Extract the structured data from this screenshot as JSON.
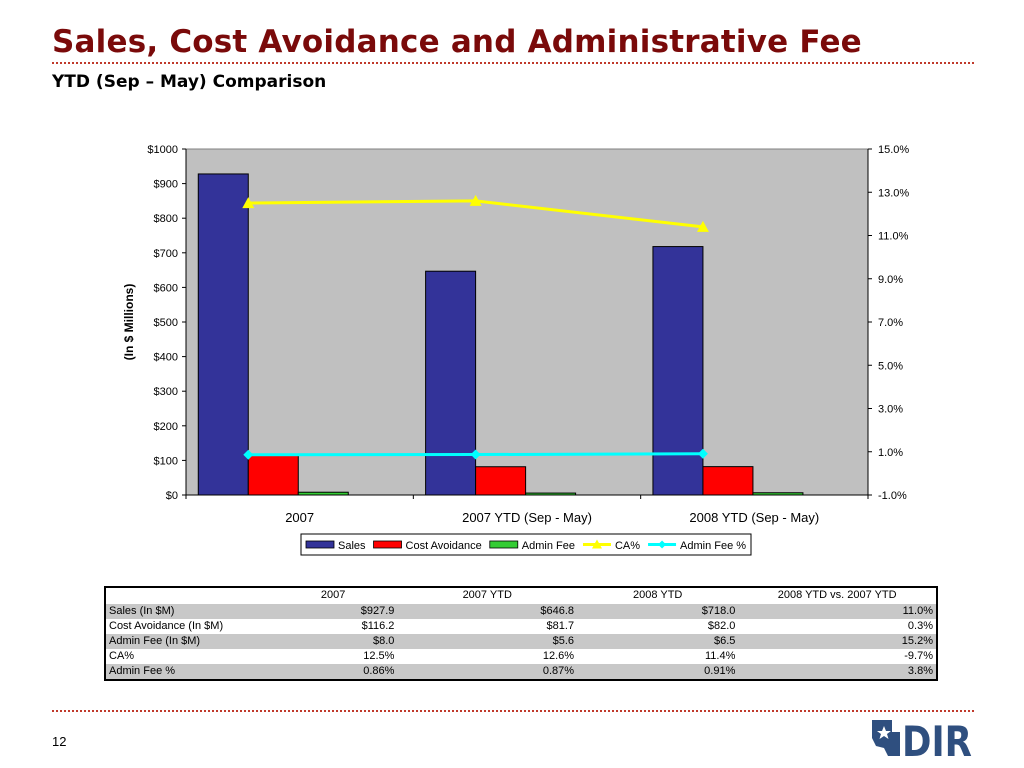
{
  "slide": {
    "title": "Sales, Cost Avoidance and Administrative Fee",
    "subtitle": "YTD (Sep – May) Comparison",
    "page_number": "12",
    "logo_text": "DIR"
  },
  "colors": {
    "title": "#7a0a0a",
    "rule": "#c0392b",
    "plot_bg": "#c0c0c0",
    "sales": "#333399",
    "cost_avoidance": "#ff0000",
    "admin_fee": "#33cc33",
    "ca_pct": "#ffff00",
    "admin_fee_pct": "#00ffff",
    "logo": "#2f4f7f"
  },
  "chart_data": {
    "type": "bar",
    "categories": [
      "2007",
      "2007 YTD (Sep - May)",
      "2008 YTD (Sep - May)"
    ],
    "ylabel": "(In $ Millions)",
    "ylim": [
      0,
      1000
    ],
    "yticks": [
      "$0",
      "$100",
      "$200",
      "$300",
      "$400",
      "$500",
      "$600",
      "$700",
      "$800",
      "$900",
      "$1000"
    ],
    "y2lim": [
      -1.0,
      15.0
    ],
    "y2ticks": [
      "-1.0%",
      "1.0%",
      "3.0%",
      "5.0%",
      "7.0%",
      "9.0%",
      "11.0%",
      "13.0%",
      "15.0%"
    ],
    "legend_position": "bottom",
    "grid": false,
    "series": [
      {
        "name": "Sales",
        "kind": "bar",
        "axis": "left",
        "color": "#333399",
        "values": [
          927.9,
          646.8,
          718.0
        ]
      },
      {
        "name": "Cost Avoidance",
        "kind": "bar",
        "axis": "left",
        "color": "#ff0000",
        "values": [
          116.2,
          81.7,
          82.0
        ]
      },
      {
        "name": "Admin Fee",
        "kind": "bar",
        "axis": "left",
        "color": "#33cc33",
        "values": [
          8.0,
          5.6,
          6.5
        ]
      },
      {
        "name": "CA%",
        "kind": "line",
        "axis": "right",
        "marker": "triangle",
        "color": "#ffff00",
        "values": [
          12.5,
          12.6,
          11.4
        ]
      },
      {
        "name": "Admin Fee %",
        "kind": "line",
        "axis": "right",
        "marker": "diamond",
        "color": "#00ffff",
        "values": [
          0.86,
          0.87,
          0.91
        ]
      }
    ]
  },
  "table": {
    "headers": [
      "",
      "2007",
      "2007 YTD",
      "2008 YTD",
      "2008 YTD vs. 2007 YTD"
    ],
    "rows": [
      [
        "Sales (In $M)",
        "$927.9",
        "$646.8",
        "$718.0",
        "11.0%"
      ],
      [
        "Cost Avoidance (In $M)",
        "$116.2",
        "$81.7",
        "$82.0",
        "0.3%"
      ],
      [
        "Admin Fee (In $M)",
        "$8.0",
        "$5.6",
        "$6.5",
        "15.2%"
      ],
      [
        "CA%",
        "12.5%",
        "12.6%",
        "11.4%",
        "-9.7%"
      ],
      [
        "Admin Fee %",
        "0.86%",
        "0.87%",
        "0.91%",
        "3.8%"
      ]
    ]
  }
}
